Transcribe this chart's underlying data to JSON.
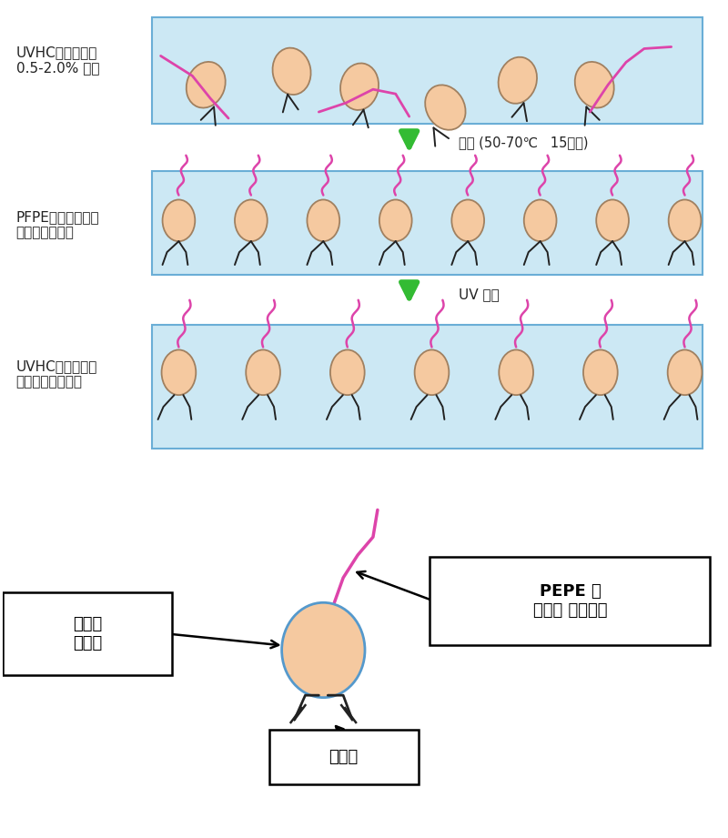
{
  "bg_color": "#ffffff",
  "box_fill": "#cce8f4",
  "box_edge": "#6aaed6",
  "ball_fill": "#f5c9a0",
  "ball_edge": "#a08060",
  "pink_color": "#dd44aa",
  "dark_color": "#222222",
  "green_arrow": "#33bb33",
  "label1": "UVHCへ固形分比\n0.5-2.0% 添加",
  "label2": "PFPE部分が表面に\n浮かび上がる。",
  "label3": "UVHC成分と共重\n合反応して硬化。",
  "arrow1_label": "風乾 (50-70℃   15分間)",
  "arrow2_label": "UV 照射",
  "legend_organic": "有機基\n溶解性",
  "legend_pepe": "PEPE 基\n撥水性 低摩擦性",
  "legend_reactive": "反応基",
  "fig_w": 8.0,
  "fig_h": 9.21
}
